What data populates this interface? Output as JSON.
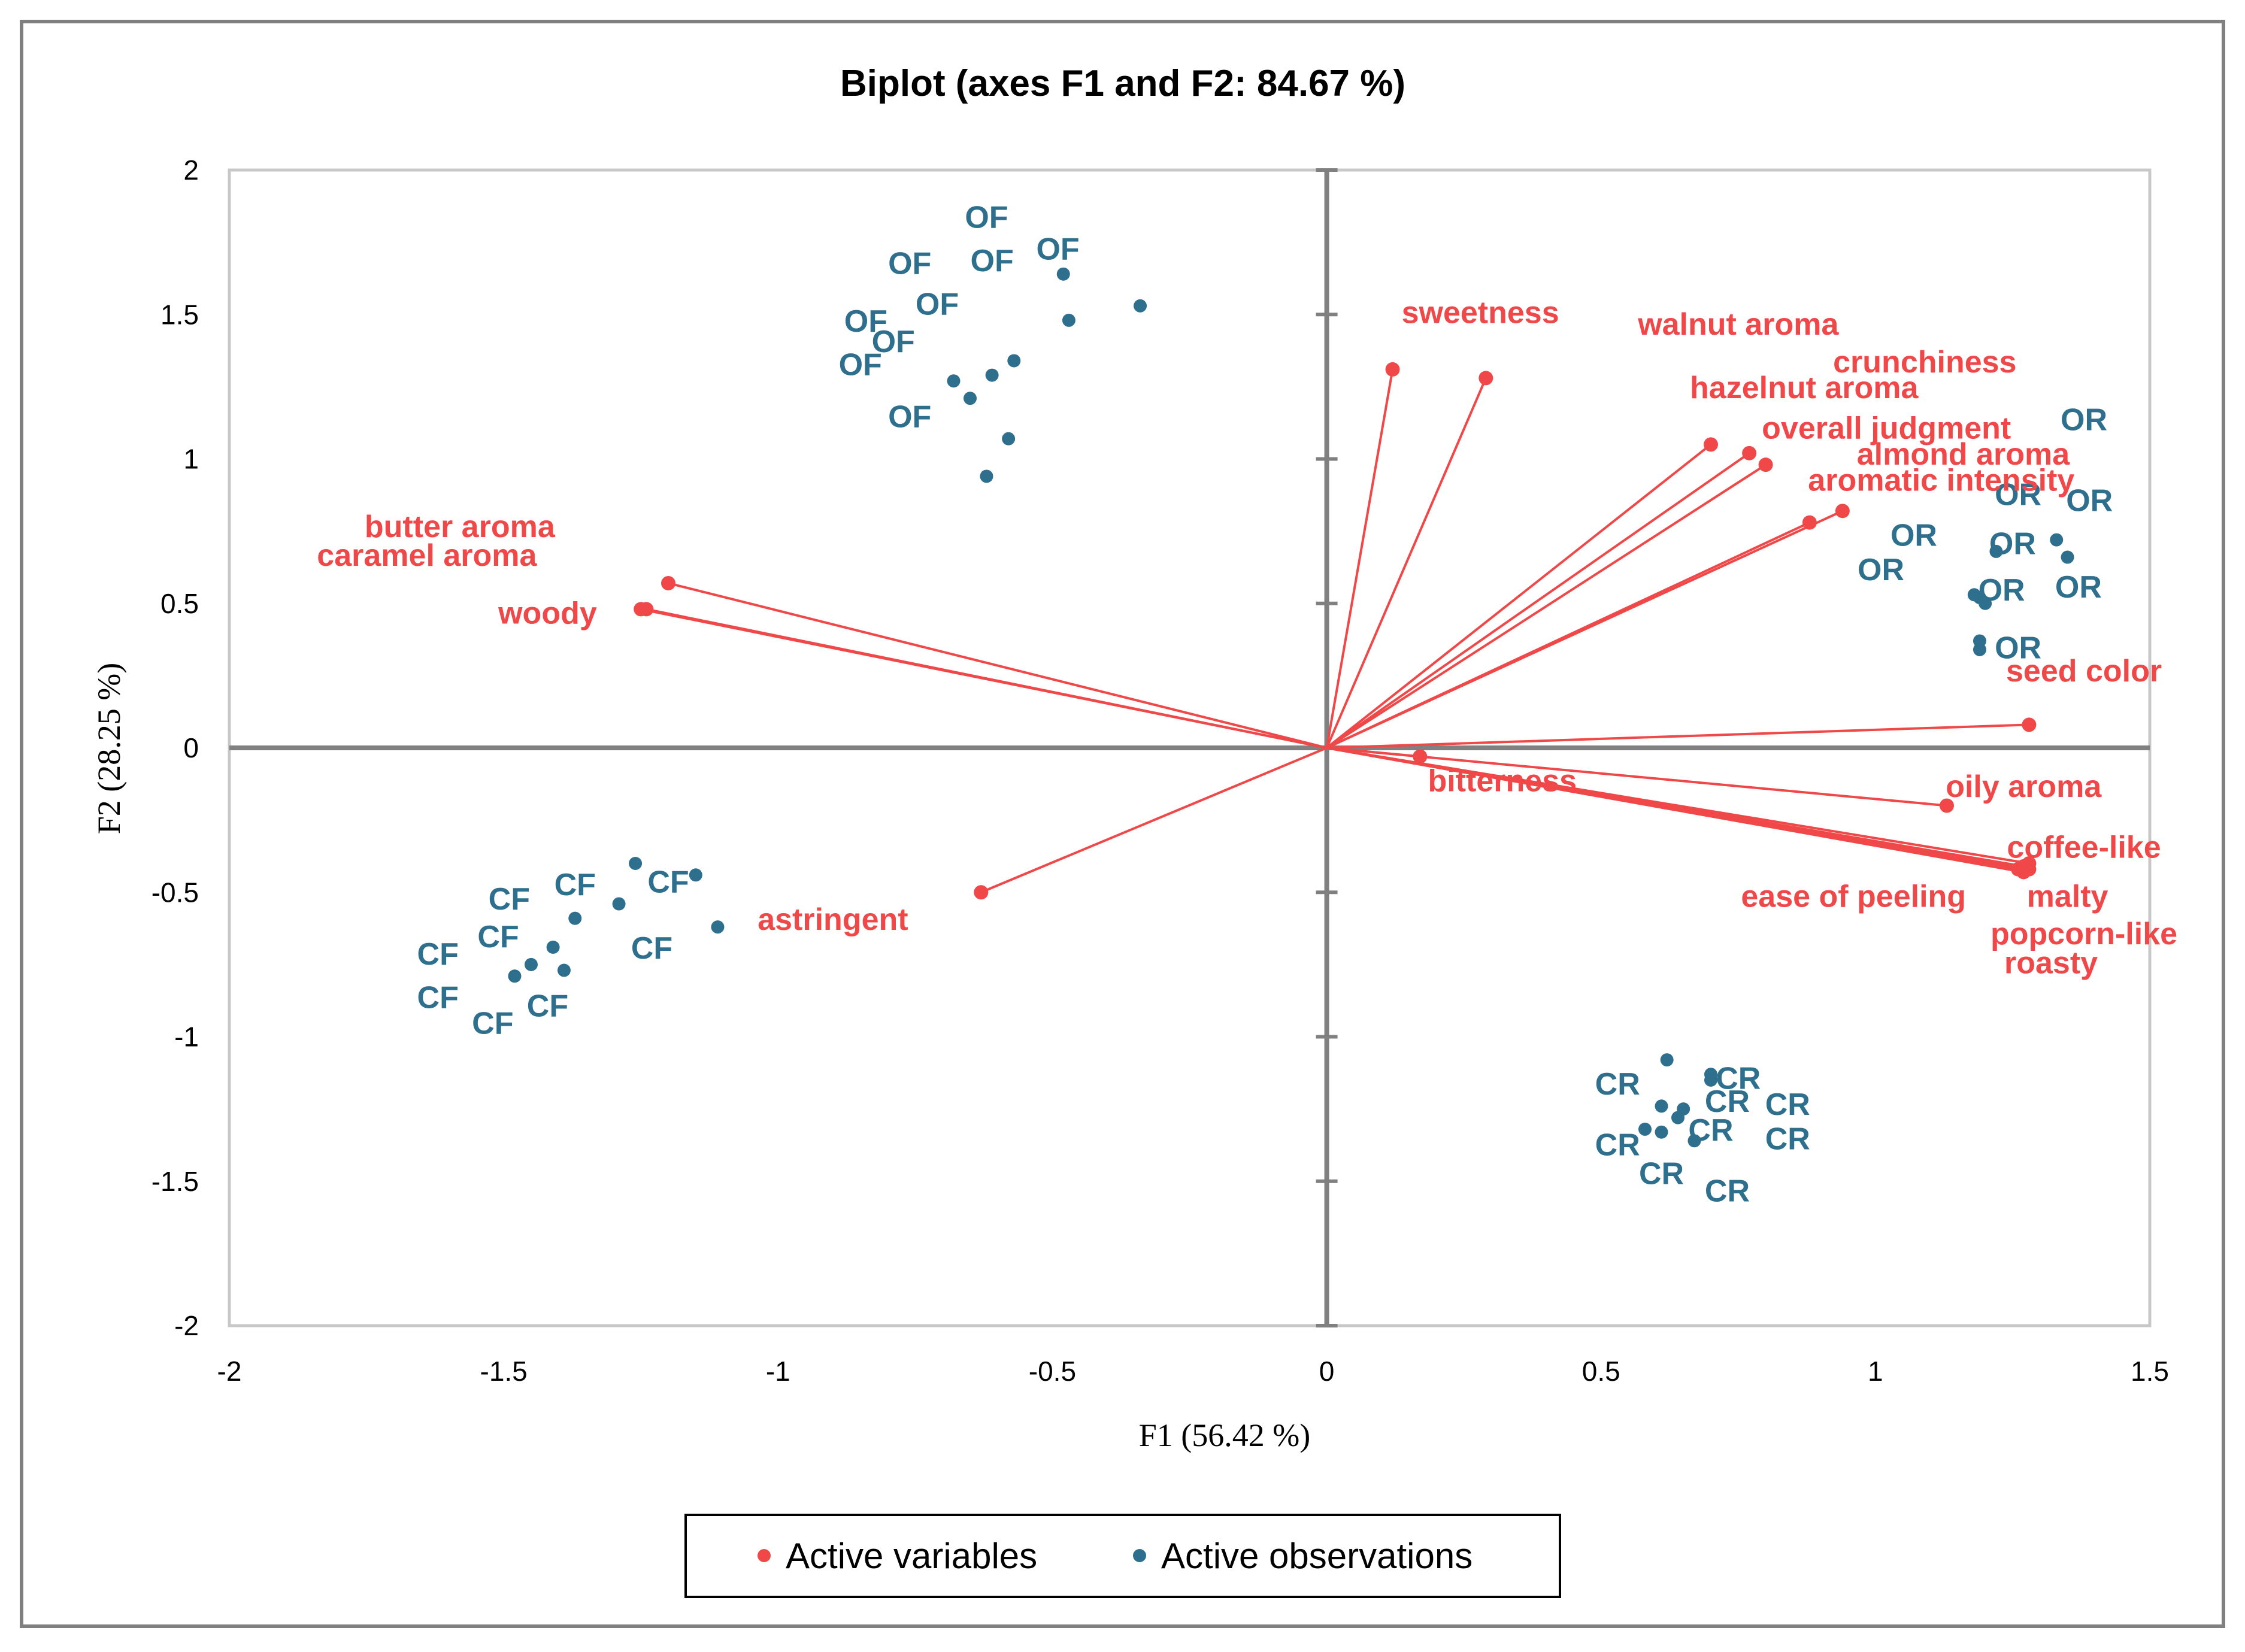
{
  "chart_data": {
    "type": "scatter",
    "title": "Biplot (axes F1 and F2: 84.67 %)",
    "xlabel": "F1 (56.42 %)",
    "ylabel": "F2 (28.25 %)",
    "xlim": [
      -2,
      1.5
    ],
    "ylim": [
      -2,
      2
    ],
    "xticks": [
      "-2",
      "-1.5",
      "-1",
      "-0.5",
      "0",
      "0.5",
      "1",
      "1.5"
    ],
    "yticks": [
      "2",
      "1.5",
      "1",
      "0.5",
      "0",
      "-0.5",
      "-1",
      "-1.5",
      "-2"
    ],
    "legend": [
      "Active variables",
      "Active observations"
    ],
    "colors": {
      "variables": "#f04848",
      "observations": "#2e6f8e",
      "axes": "#808080",
      "frame": "#bfbfbf"
    },
    "variables": [
      {
        "name": "sweetness",
        "x": 0.12,
        "y": 1.31
      },
      {
        "name": "walnut aroma",
        "x": 0.29,
        "y": 1.28
      },
      {
        "name": "crunchiness",
        "x": 0.7,
        "y": 1.05
      },
      {
        "name": "hazelnut aroma",
        "x": 0.77,
        "y": 1.02
      },
      {
        "name": "overall judgment",
        "x": 0.8,
        "y": 0.98
      },
      {
        "name": "almond aroma",
        "x": 0.94,
        "y": 0.82
      },
      {
        "name": "aromatic intensity",
        "x": 0.88,
        "y": 0.78
      },
      {
        "name": "seed color",
        "x": 1.28,
        "y": 0.08
      },
      {
        "name": "bitterness",
        "x": 0.17,
        "y": -0.03
      },
      {
        "name": "oily aroma",
        "x": 1.13,
        "y": -0.2
      },
      {
        "name": "coffee-like",
        "x": 1.28,
        "y": -0.4
      },
      {
        "name": "malty",
        "x": 1.27,
        "y": -0.41
      },
      {
        "name": "ease of peeling",
        "x": 1.28,
        "y": -0.42
      },
      {
        "name": "popcorn-like",
        "x": 1.26,
        "y": -0.42
      },
      {
        "name": "roasty",
        "x": 1.27,
        "y": -0.43
      },
      {
        "name": "butter aroma",
        "x": -1.2,
        "y": 0.57
      },
      {
        "name": "caramel aroma",
        "x": -1.24,
        "y": 0.48
      },
      {
        "name": "woody",
        "x": -1.25,
        "y": 0.48
      },
      {
        "name": "astringent",
        "x": -0.63,
        "y": -0.5
      }
    ],
    "observations": [
      {
        "label": "OF",
        "x": -0.48,
        "y": 1.64
      },
      {
        "label": "OF",
        "x": -0.47,
        "y": 1.48
      },
      {
        "label": "OF",
        "x": -0.34,
        "y": 1.53
      },
      {
        "label": "OF",
        "x": -0.57,
        "y": 1.34
      },
      {
        "label": "OF",
        "x": -0.61,
        "y": 1.29
      },
      {
        "label": "OF",
        "x": -0.68,
        "y": 1.27
      },
      {
        "label": "OF",
        "x": -0.65,
        "y": 1.21
      },
      {
        "label": "OF",
        "x": -0.58,
        "y": 1.07
      },
      {
        "label": "OF",
        "x": -0.62,
        "y": 0.94
      },
      {
        "label": "OR",
        "x": 1.33,
        "y": 0.72
      },
      {
        "label": "OR",
        "x": 1.35,
        "y": 0.66
      },
      {
        "label": "OR",
        "x": 1.22,
        "y": 0.68
      },
      {
        "label": "OR",
        "x": 1.18,
        "y": 0.53
      },
      {
        "label": "OR",
        "x": 1.19,
        "y": 0.52
      },
      {
        "label": "OR",
        "x": 1.2,
        "y": 0.5
      },
      {
        "label": "OR",
        "x": 1.19,
        "y": 0.37
      },
      {
        "label": "OR",
        "x": 1.19,
        "y": 0.34
      },
      {
        "label": "CF",
        "x": -1.26,
        "y": -0.4
      },
      {
        "label": "CF",
        "x": -1.15,
        "y": -0.44
      },
      {
        "label": "CF",
        "x": -1.29,
        "y": -0.54
      },
      {
        "label": "CF",
        "x": -1.37,
        "y": -0.59
      },
      {
        "label": "CF",
        "x": -1.11,
        "y": -0.62
      },
      {
        "label": "CF",
        "x": -1.41,
        "y": -0.69
      },
      {
        "label": "CF",
        "x": -1.45,
        "y": -0.75
      },
      {
        "label": "CF",
        "x": -1.48,
        "y": -0.79
      },
      {
        "label": "CF",
        "x": -1.39,
        "y": -0.77
      },
      {
        "label": "CR",
        "x": 0.62,
        "y": -1.08
      },
      {
        "label": "CR",
        "x": 0.7,
        "y": -1.13
      },
      {
        "label": "CR",
        "x": 0.7,
        "y": -1.15
      },
      {
        "label": "CR",
        "x": 0.61,
        "y": -1.24
      },
      {
        "label": "CR",
        "x": 0.65,
        "y": -1.25
      },
      {
        "label": "CR",
        "x": 0.64,
        "y": -1.28
      },
      {
        "label": "CR",
        "x": 0.58,
        "y": -1.32
      },
      {
        "label": "CR",
        "x": 0.61,
        "y": -1.33
      },
      {
        "label": "CR",
        "x": 0.67,
        "y": -1.36
      }
    ],
    "point_labels": [
      {
        "text": "OF",
        "x": -0.62,
        "y": 1.8
      },
      {
        "text": "OF",
        "x": -0.49,
        "y": 1.69
      },
      {
        "text": "OF",
        "x": -0.76,
        "y": 1.64
      },
      {
        "text": "OF",
        "x": -0.61,
        "y": 1.65
      },
      {
        "text": "OF",
        "x": -0.71,
        "y": 1.5
      },
      {
        "text": "OF",
        "x": -0.84,
        "y": 1.44
      },
      {
        "text": "OF",
        "x": -0.79,
        "y": 1.37
      },
      {
        "text": "OF",
        "x": -0.85,
        "y": 1.29
      },
      {
        "text": "OF",
        "x": -0.76,
        "y": 1.11
      },
      {
        "text": "OR",
        "x": 1.38,
        "y": 1.1
      },
      {
        "text": "OR",
        "x": 1.26,
        "y": 0.84
      },
      {
        "text": "OR",
        "x": 1.39,
        "y": 0.82
      },
      {
        "text": "OR",
        "x": 1.07,
        "y": 0.7
      },
      {
        "text": "OR",
        "x": 1.25,
        "y": 0.67
      },
      {
        "text": "OR",
        "x": 1.01,
        "y": 0.58
      },
      {
        "text": "OR",
        "x": 1.23,
        "y": 0.51
      },
      {
        "text": "OR",
        "x": 1.37,
        "y": 0.52
      },
      {
        "text": "OR",
        "x": 1.26,
        "y": 0.31
      },
      {
        "text": "CF",
        "x": -1.37,
        "y": -0.51
      },
      {
        "text": "CF",
        "x": -1.2,
        "y": -0.5
      },
      {
        "text": "CF",
        "x": -1.49,
        "y": -0.56
      },
      {
        "text": "CF",
        "x": -1.51,
        "y": -0.69
      },
      {
        "text": "CF",
        "x": -1.23,
        "y": -0.73
      },
      {
        "text": "CF",
        "x": -1.62,
        "y": -0.75
      },
      {
        "text": "CF",
        "x": -1.62,
        "y": -0.9
      },
      {
        "text": "CF",
        "x": -1.52,
        "y": -0.99
      },
      {
        "text": "CF",
        "x": -1.42,
        "y": -0.93
      },
      {
        "text": "CR",
        "x": 0.53,
        "y": -1.2
      },
      {
        "text": "CR",
        "x": 0.75,
        "y": -1.18
      },
      {
        "text": "CR",
        "x": 0.73,
        "y": -1.26
      },
      {
        "text": "CR",
        "x": 0.84,
        "y": -1.27
      },
      {
        "text": "CR",
        "x": 0.53,
        "y": -1.41
      },
      {
        "text": "CR",
        "x": 0.7,
        "y": -1.36
      },
      {
        "text": "CR",
        "x": 0.84,
        "y": -1.39
      },
      {
        "text": "CR",
        "x": 0.61,
        "y": -1.51
      },
      {
        "text": "CR",
        "x": 0.73,
        "y": -1.57
      }
    ],
    "variable_labels": [
      {
        "text": "sweetness",
        "x": 0.28,
        "y": 1.47
      },
      {
        "text": "walnut aroma",
        "x": 0.75,
        "y": 1.43
      },
      {
        "text": "crunchiness",
        "x": 1.09,
        "y": 1.3
      },
      {
        "text": "hazelnut aroma",
        "x": 0.87,
        "y": 1.21
      },
      {
        "text": "overall judgment",
        "x": 1.02,
        "y": 1.07
      },
      {
        "text": "almond aroma",
        "x": 1.16,
        "y": 0.98
      },
      {
        "text": "aromatic intensity",
        "x": 1.12,
        "y": 0.89
      },
      {
        "text": "seed color",
        "x": 1.38,
        "y": 0.23
      },
      {
        "text": "bitterness",
        "x": 0.32,
        "y": -0.15
      },
      {
        "text": "oily aroma",
        "x": 1.27,
        "y": -0.17
      },
      {
        "text": "coffee-like",
        "x": 1.38,
        "y": -0.38
      },
      {
        "text": "ease of peeling",
        "x": 0.96,
        "y": -0.55
      },
      {
        "text": "malty",
        "x": 1.35,
        "y": -0.55
      },
      {
        "text": "popcorn-like",
        "x": 1.38,
        "y": -0.68
      },
      {
        "text": "roasty",
        "x": 1.32,
        "y": -0.78
      },
      {
        "text": "butter aroma",
        "x": -1.58,
        "y": 0.73
      },
      {
        "text": "caramel aroma",
        "x": -1.64,
        "y": 0.63
      },
      {
        "text": "woody",
        "x": -1.42,
        "y": 0.43
      },
      {
        "text": "astringent",
        "x": -0.9,
        "y": -0.63
      }
    ]
  }
}
